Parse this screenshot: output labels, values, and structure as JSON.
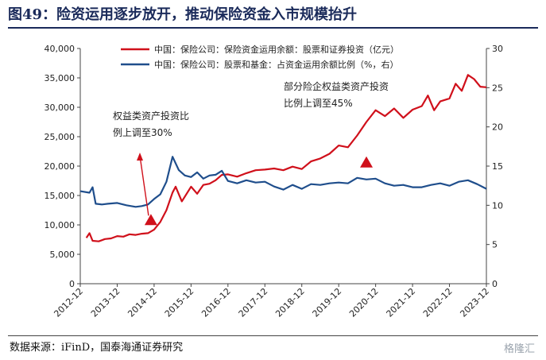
{
  "header": {
    "title": "图49：险资运用逐步放开，推动保险资金入市规模抬升"
  },
  "footer": {
    "source": "数据来源：iFinD，国泰海通证券研究",
    "watermark": "格隆汇"
  },
  "colors": {
    "red": "#d0101b",
    "blue": "#1f4e8c",
    "title": "#1a2a5a"
  },
  "chart_data": {
    "type": "line",
    "x": [
      "2012-12",
      "2013-12",
      "2014-12",
      "2015-12",
      "2016-12",
      "2017-12",
      "2018-12",
      "2019-12",
      "2020-12",
      "2021-12",
      "2022-12",
      "2023-12"
    ],
    "ylim": [
      0,
      40000
    ],
    "y2lim": [
      0,
      30
    ],
    "y_ticks": [
      "0",
      "5,000",
      "10,000",
      "15,000",
      "20,000",
      "25,000",
      "30,000",
      "35,000",
      "40,000"
    ],
    "y2_ticks": [
      "0",
      "5",
      "10",
      "15",
      "20",
      "25",
      "30"
    ],
    "series": [
      {
        "name": "中国：保险公司：保险资金运用余额：股票和证券投资（亿元）",
        "axis": "left",
        "color": "#d0101b",
        "values": [
          [
            "2013-02",
            7800
          ],
          [
            "2013-03",
            8600
          ],
          [
            "2013-04",
            7300
          ],
          [
            "2013-06",
            7200
          ],
          [
            "2013-08",
            7600
          ],
          [
            "2013-10",
            7700
          ],
          [
            "2013-12",
            8100
          ],
          [
            "2014-02",
            8000
          ],
          [
            "2014-04",
            8400
          ],
          [
            "2014-06",
            8300
          ],
          [
            "2014-08",
            8500
          ],
          [
            "2014-10",
            8600
          ],
          [
            "2014-12",
            9200
          ],
          [
            "2015-02",
            10500
          ],
          [
            "2015-04",
            12500
          ],
          [
            "2015-06",
            15500
          ],
          [
            "2015-07",
            16500
          ],
          [
            "2015-09",
            14000
          ],
          [
            "2015-12",
            16500
          ],
          [
            "2016-02",
            15300
          ],
          [
            "2016-04",
            16800
          ],
          [
            "2016-06",
            17000
          ],
          [
            "2016-08",
            17600
          ],
          [
            "2016-10",
            18500
          ],
          [
            "2016-12",
            18600
          ],
          [
            "2017-03",
            18200
          ],
          [
            "2017-06",
            18800
          ],
          [
            "2017-09",
            19300
          ],
          [
            "2017-12",
            19400
          ],
          [
            "2018-03",
            19600
          ],
          [
            "2018-06",
            19300
          ],
          [
            "2018-09",
            19900
          ],
          [
            "2018-12",
            19500
          ],
          [
            "2019-03",
            20800
          ],
          [
            "2019-06",
            21300
          ],
          [
            "2019-09",
            22100
          ],
          [
            "2019-12",
            23500
          ],
          [
            "2020-03",
            23200
          ],
          [
            "2020-06",
            25200
          ],
          [
            "2020-09",
            27500
          ],
          [
            "2020-12",
            29500
          ],
          [
            "2021-03",
            28500
          ],
          [
            "2021-06",
            29800
          ],
          [
            "2021-09",
            28200
          ],
          [
            "2021-12",
            29600
          ],
          [
            "2022-03",
            30200
          ],
          [
            "2022-05",
            32000
          ],
          [
            "2022-07",
            29500
          ],
          [
            "2022-09",
            31000
          ],
          [
            "2022-12",
            31500
          ],
          [
            "2023-02",
            34000
          ],
          [
            "2023-04",
            32800
          ],
          [
            "2023-06",
            35500
          ],
          [
            "2023-08",
            34800
          ],
          [
            "2023-10",
            33500
          ],
          [
            "2023-12",
            33400
          ]
        ]
      },
      {
        "name": "中国：保险公司：股票和基金：占资金运用余额比例（%，右）",
        "axis": "right",
        "color": "#1f4e8c",
        "values": [
          [
            "2012-12",
            11.8
          ],
          [
            "2013-03",
            11.6
          ],
          [
            "2013-04",
            12.3
          ],
          [
            "2013-05",
            10.2
          ],
          [
            "2013-07",
            10.1
          ],
          [
            "2013-09",
            10.2
          ],
          [
            "2013-12",
            10.3
          ],
          [
            "2014-03",
            10.0
          ],
          [
            "2014-06",
            9.8
          ],
          [
            "2014-08",
            9.9
          ],
          [
            "2014-10",
            10.1
          ],
          [
            "2014-12",
            10.8
          ],
          [
            "2015-02",
            11.4
          ],
          [
            "2015-04",
            13.0
          ],
          [
            "2015-06",
            16.2
          ],
          [
            "2015-08",
            14.5
          ],
          [
            "2015-10",
            13.8
          ],
          [
            "2015-12",
            13.6
          ],
          [
            "2016-02",
            14.2
          ],
          [
            "2016-04",
            13.4
          ],
          [
            "2016-06",
            13.8
          ],
          [
            "2016-08",
            13.9
          ],
          [
            "2016-10",
            14.4
          ],
          [
            "2016-12",
            13.1
          ],
          [
            "2017-03",
            12.8
          ],
          [
            "2017-06",
            13.2
          ],
          [
            "2017-09",
            12.9
          ],
          [
            "2017-12",
            13.0
          ],
          [
            "2018-03",
            12.4
          ],
          [
            "2018-06",
            12.0
          ],
          [
            "2018-09",
            12.6
          ],
          [
            "2018-12",
            12.1
          ],
          [
            "2019-03",
            12.7
          ],
          [
            "2019-06",
            12.6
          ],
          [
            "2019-09",
            12.8
          ],
          [
            "2019-12",
            12.9
          ],
          [
            "2020-03",
            12.8
          ],
          [
            "2020-06",
            13.5
          ],
          [
            "2020-09",
            13.3
          ],
          [
            "2020-12",
            13.4
          ],
          [
            "2021-03",
            12.8
          ],
          [
            "2021-06",
            12.5
          ],
          [
            "2021-09",
            12.6
          ],
          [
            "2021-12",
            12.3
          ],
          [
            "2022-03",
            12.3
          ],
          [
            "2022-06",
            12.6
          ],
          [
            "2022-09",
            12.8
          ],
          [
            "2022-12",
            12.5
          ],
          [
            "2023-03",
            13.0
          ],
          [
            "2023-06",
            13.2
          ],
          [
            "2023-09",
            12.7
          ],
          [
            "2023-12",
            12.1
          ]
        ]
      }
    ],
    "annotations": [
      {
        "lines": [
          "权益类资产投资比",
          "例上调至30%"
        ],
        "marker_x": "2014-12",
        "marker_y": 10500
      },
      {
        "lines": [
          "部分险企权益类资产投资",
          "比例上调至45%"
        ],
        "marker_x": "2020-09",
        "marker_y": 20300
      }
    ],
    "legend": "top-center"
  }
}
